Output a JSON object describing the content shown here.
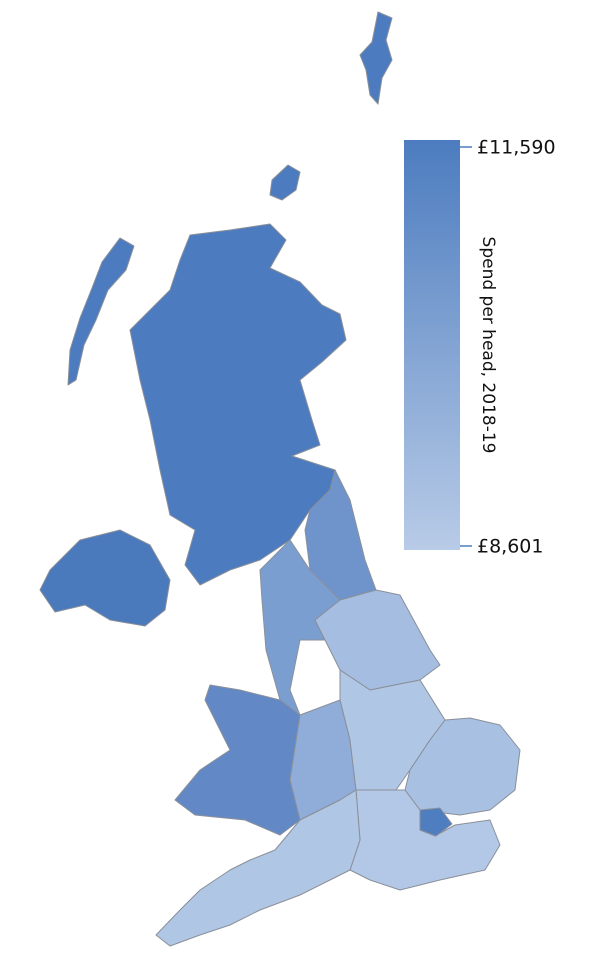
{
  "legend": {
    "title": "Spend per head, 2018-19",
    "max_label": "£11,590",
    "min_label": "£8,601"
  }
}
